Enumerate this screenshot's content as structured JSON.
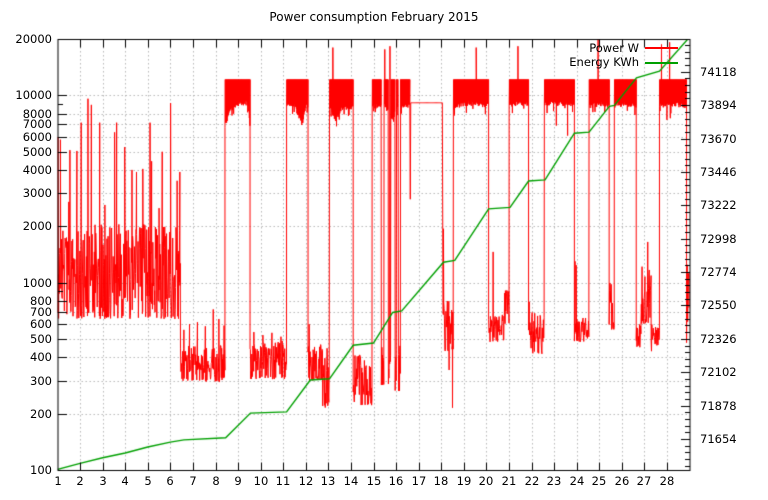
{
  "title": "Power consumption February 2015",
  "legend": {
    "power_label": "Power W",
    "energy_label": "Energy KWh"
  },
  "colors": {
    "power": "#ff0000",
    "energy": "#00a000",
    "grid": "#b9b9b9",
    "border": "#000000",
    "background": "#ffffff"
  },
  "chart_data": {
    "type": "line",
    "title": "Power consumption February 2015",
    "x_axis": {
      "range": [
        1,
        29
      ],
      "tick_labels": [
        1,
        2,
        3,
        4,
        5,
        6,
        7,
        8,
        9,
        10,
        11,
        12,
        13,
        14,
        15,
        16,
        17,
        18,
        19,
        20,
        21,
        22,
        23,
        24,
        25,
        26,
        27,
        28
      ],
      "grid": true
    },
    "y_left_axis": {
      "name": "Power W",
      "scale": "log",
      "range": [
        100,
        20000
      ],
      "tick_labels": [
        100,
        200,
        300,
        400,
        500,
        600,
        700,
        800,
        1000,
        2000,
        3000,
        4000,
        5000,
        6000,
        7000,
        8000,
        10000,
        20000
      ],
      "minor_ticks": [
        900,
        9000
      ],
      "grid": true
    },
    "y_right_axis": {
      "name": "Energy KWh",
      "scale": "linear",
      "range": [
        71446,
        74338
      ],
      "tick_labels": [
        71654,
        71878,
        72102,
        72326,
        72550,
        72774,
        72998,
        73222,
        73446,
        73670,
        73894,
        74118
      ],
      "minor_tick_step": 44.8,
      "grid": false
    },
    "legend_position": "top-right-inside",
    "series": [
      {
        "name": "Power W",
        "axis": "left",
        "color": "#ff0000",
        "style": "noisy-line",
        "segments": [
          {
            "type": "noise",
            "d0": 1.0,
            "d1": 6.45,
            "min": 640,
            "max": 2050,
            "spikes": [
              [
                1.02,
                6000
              ],
              [
                1.13,
                5800
              ],
              [
                1.5,
                2700
              ],
              [
                1.55,
                5100
              ],
              [
                1.86,
                5050
              ],
              [
                2.05,
                7150
              ],
              [
                2.35,
                9600
              ],
              [
                2.5,
                8900
              ],
              [
                2.87,
                7150
              ],
              [
                3.1,
                2600
              ],
              [
                3.53,
                6350
              ],
              [
                3.62,
                7150
              ],
              [
                3.98,
                5300
              ],
              [
                4.3,
                4000
              ],
              [
                4.5,
                3900
              ],
              [
                4.78,
                4050
              ],
              [
                5.1,
                7150
              ],
              [
                5.17,
                4450
              ],
              [
                5.5,
                2500
              ],
              [
                5.64,
                5000
              ],
              [
                6.01,
                9100
              ],
              [
                6.3,
                3500
              ],
              [
                6.42,
                3900
              ]
            ]
          },
          {
            "type": "noise",
            "d0": 6.45,
            "d1": 8.42,
            "min": 295,
            "max": 465,
            "spikes": [
              [
                6.6,
                560
              ],
              [
                6.85,
                600
              ],
              [
                7.2,
                615
              ],
              [
                7.55,
                585
              ],
              [
                7.9,
                720
              ],
              [
                8.15,
                640
              ],
              [
                8.38,
                590
              ]
            ]
          },
          {
            "type": "block",
            "d0": 8.42,
            "d1": 9.53,
            "top": 12150,
            "bot": [
              [
                8.42,
                7100
              ],
              [
                8.65,
                8600
              ],
              [
                8.95,
                9250
              ],
              [
                9.3,
                9400
              ],
              [
                9.45,
                9300
              ],
              [
                9.53,
                7000
              ]
            ]
          },
          {
            "type": "noise",
            "d0": 9.53,
            "d1": 11.15,
            "min": 305,
            "max": 490,
            "spikes": [
              [
                9.7,
                545
              ],
              [
                10.1,
                525
              ],
              [
                10.5,
                540
              ],
              [
                10.9,
                515
              ]
            ]
          },
          {
            "type": "block",
            "d0": 11.15,
            "d1": 12.1,
            "top": 12150,
            "bot": [
              [
                11.15,
                9250
              ],
              [
                11.5,
                9050
              ],
              [
                11.85,
                7200
              ],
              [
                12.0,
                9250
              ],
              [
                12.1,
                9100
              ]
            ]
          },
          {
            "type": "noise",
            "d0": 12.1,
            "d1": 12.75,
            "min": 300,
            "max": 470,
            "spikes": [
              [
                12.15,
                600
              ]
            ]
          },
          {
            "type": "noise",
            "d0": 12.75,
            "d1": 13.05,
            "min": 215,
            "max": 450,
            "spikes": []
          },
          {
            "type": "block",
            "d0": 13.05,
            "d1": 14.1,
            "top": 12150,
            "bot": [
              [
                13.05,
                8900
              ],
              [
                13.35,
                7600
              ],
              [
                13.6,
                8850
              ],
              [
                14.1,
                8950
              ]
            ],
            "spikes": [
              [
                13.2,
                18000
              ]
            ]
          },
          {
            "type": "noise",
            "d0": 14.1,
            "d1": 14.94,
            "min": 220,
            "max": 425,
            "spikes": []
          },
          {
            "type": "block",
            "d0": 14.94,
            "d1": 16.61,
            "top": 12150,
            "bot": [
              [
                14.94,
                9050
              ],
              [
                15.5,
                9000
              ],
              [
                15.85,
                7650
              ],
              [
                16.05,
                9100
              ],
              [
                16.61,
                9100
              ]
            ],
            "gaps": [
              [
                15.34,
                15.46
              ],
              [
                15.65,
                15.76
              ],
              [
                15.95,
                16.02
              ],
              [
                16.1,
                16.2
              ]
            ],
            "spikes": [
              [
                15.5,
                17600
              ],
              [
                15.73,
                18300
              ]
            ]
          },
          {
            "type": "flat",
            "d0": 16.61,
            "d1": 18.08,
            "value": 9130,
            "drops": [
              [
                16.63,
                2790
              ]
            ]
          },
          {
            "type": "noise",
            "d0": 18.08,
            "d1": 18.54,
            "min": 430,
            "max": 850,
            "spikes": [
              [
                18.1,
                1940
              ],
              [
                18.35,
                342
              ],
              [
                18.5,
                215
              ]
            ]
          },
          {
            "type": "block",
            "d0": 18.54,
            "d1": 20.1,
            "top": 12150,
            "bot": [
              [
                18.54,
                8850
              ],
              [
                19.0,
                9300
              ],
              [
                19.6,
                9350
              ],
              [
                20.1,
                9050
              ]
            ],
            "spikes": [
              [
                19.55,
                18000
              ]
            ]
          },
          {
            "type": "noise",
            "d0": 20.1,
            "d1": 20.78,
            "min": 480,
            "max": 680,
            "spikes": [
              [
                20.3,
                1460
              ]
            ]
          },
          {
            "type": "noise",
            "d0": 20.78,
            "d1": 21.01,
            "min": 600,
            "max": 1000,
            "spikes": []
          },
          {
            "type": "block",
            "d0": 21.01,
            "d1": 21.87,
            "top": 12150,
            "bot": [
              [
                21.01,
                9250
              ],
              [
                21.45,
                9350
              ],
              [
                21.87,
                9250
              ]
            ],
            "spikes": [
              [
                21.4,
                18300
              ]
            ]
          },
          {
            "type": "noise",
            "d0": 21.87,
            "d1": 22.57,
            "min": 415,
            "max": 700,
            "spikes": [
              [
                21.9,
                790
              ]
            ]
          },
          {
            "type": "block",
            "d0": 22.57,
            "d1": 23.9,
            "top": 12150,
            "bot": [
              [
                22.57,
                9250
              ],
              [
                23.0,
                9350
              ],
              [
                23.9,
                9250
              ]
            ],
            "drops": [
              [
                23.1,
                6900
              ],
              [
                23.6,
                6100
              ]
            ]
          },
          {
            "type": "noise",
            "d0": 23.9,
            "d1": 24.55,
            "min": 480,
            "max": 650,
            "spikes": [
              [
                23.93,
                1300
              ],
              [
                23.98,
                1240
              ]
            ]
          },
          {
            "type": "block",
            "d0": 24.55,
            "d1": 25.44,
            "top": 12150,
            "bot": [
              [
                24.55,
                8950
              ],
              [
                25.0,
                9300
              ],
              [
                25.44,
                9050
              ]
            ],
            "spikes": [
              [
                24.95,
                19800
              ]
            ]
          },
          {
            "type": "noise",
            "d0": 25.44,
            "d1": 25.67,
            "min": 560,
            "max": 1000,
            "spikes": []
          },
          {
            "type": "block",
            "d0": 25.67,
            "d1": 26.64,
            "top": 12150,
            "bot": [
              [
                25.67,
                9150
              ],
              [
                26.2,
                9300
              ],
              [
                26.64,
                9050
              ]
            ]
          },
          {
            "type": "noise",
            "d0": 26.64,
            "d1": 26.85,
            "min": 450,
            "max": 650,
            "spikes": []
          },
          {
            "type": "noise",
            "d0": 26.85,
            "d1": 27.3,
            "min": 600,
            "max": 1300,
            "spikes": [
              [
                27.15,
                1650
              ]
            ]
          },
          {
            "type": "noise",
            "d0": 27.3,
            "d1": 27.67,
            "min": 430,
            "max": 620,
            "spikes": []
          },
          {
            "type": "block",
            "d0": 27.67,
            "d1": 28.87,
            "top": 12150,
            "bot": [
              [
                27.67,
                9150
              ],
              [
                28.4,
                9250
              ],
              [
                28.87,
                9050
              ]
            ],
            "drops": [
              [
                28.0,
                7400
              ],
              [
                28.15,
                7550
              ]
            ],
            "spikes": [
              [
                27.76,
                18700
              ],
              [
                28.12,
                19200
              ]
            ]
          },
          {
            "type": "noise",
            "d0": 28.87,
            "d1": 29.0,
            "min": 470,
            "max": 1350,
            "spikes": []
          }
        ]
      },
      {
        "name": "Energy KWh",
        "axis": "right",
        "color": "#00a000",
        "style": "line",
        "points": [
          [
            1,
            71450
          ],
          [
            2,
            71490
          ],
          [
            3,
            71528
          ],
          [
            4,
            71560
          ],
          [
            5,
            71600
          ],
          [
            6,
            71633
          ],
          [
            6.6,
            71648
          ],
          [
            8.45,
            71662
          ],
          [
            9.55,
            71828
          ],
          [
            11.15,
            71836
          ],
          [
            12.2,
            72050
          ],
          [
            13.05,
            72058
          ],
          [
            14.1,
            72283
          ],
          [
            15,
            72298
          ],
          [
            15.85,
            72503
          ],
          [
            16.25,
            72514
          ],
          [
            18.1,
            72840
          ],
          [
            18.6,
            72852
          ],
          [
            20.1,
            73198
          ],
          [
            21.05,
            73208
          ],
          [
            21.87,
            73385
          ],
          [
            22.6,
            73393
          ],
          [
            23.9,
            73706
          ],
          [
            24.55,
            73713
          ],
          [
            25.45,
            73886
          ],
          [
            25.67,
            73892
          ],
          [
            26.65,
            74077
          ],
          [
            27.67,
            74122
          ],
          [
            28.97,
            74345
          ]
        ]
      }
    ]
  }
}
